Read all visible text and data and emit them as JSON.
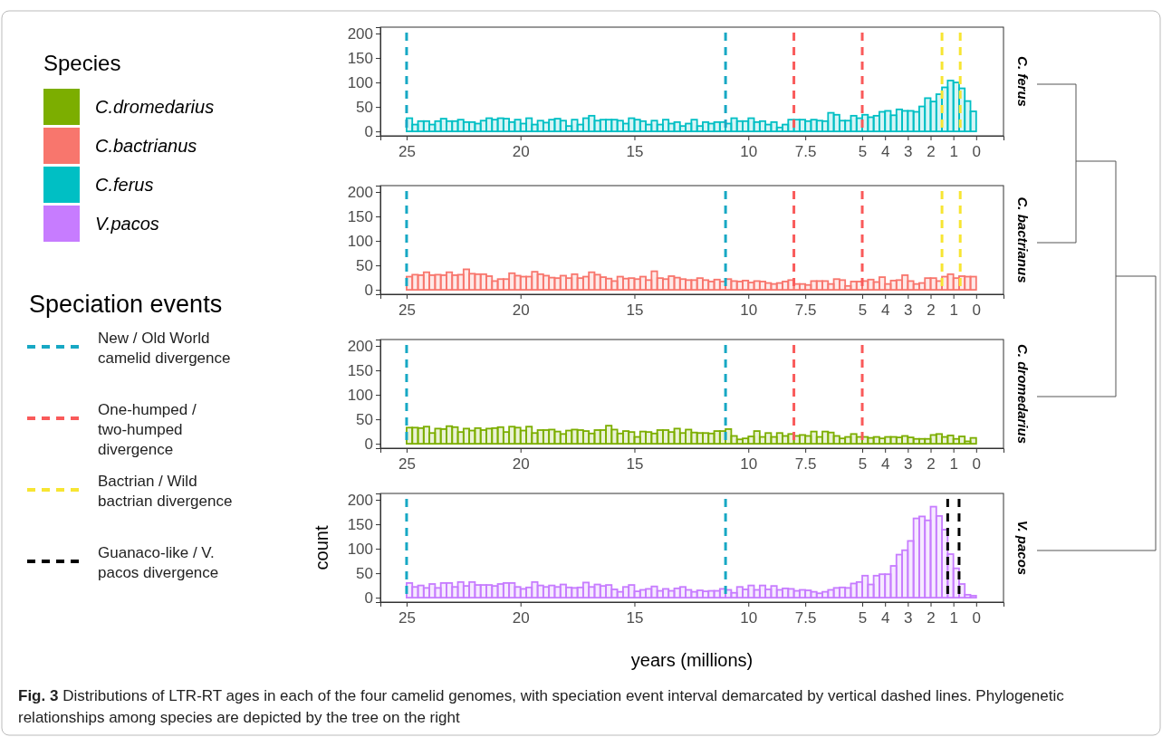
{
  "chart_data": [
    {
      "type": "histogram",
      "legend_title": "Species",
      "annotations": [
        "C. ferus",
        "Speciation events"
      ],
      "legend": "left",
      "bins": [
        25,
        24.75,
        24.5,
        24.25,
        24,
        23.75,
        23.5,
        23.25,
        23,
        22.75,
        22.5,
        22.25,
        22,
        21.75,
        21.5,
        21.25,
        21,
        20.75,
        20.5,
        20.25,
        20,
        19.75,
        19.5,
        19.25,
        19,
        18.75,
        18.5,
        18.25,
        18,
        17.75,
        17.5,
        17.25,
        17,
        16.75,
        16.5,
        16.25,
        16,
        15.75,
        15.5,
        15.25,
        15,
        14.75,
        14.5,
        14.25,
        14,
        13.75,
        13.5,
        13.25,
        13,
        12.75,
        12.5,
        12.25,
        12,
        11.75,
        11.5,
        11.25,
        11,
        10.75,
        10.5,
        10.25,
        10,
        9.75,
        9.5,
        9.25,
        9,
        8.75,
        8.5,
        8.25,
        8,
        7.75,
        7.5,
        7.25,
        7,
        6.75,
        6.5,
        6.25,
        6,
        5.75,
        5.5,
        5.25,
        5,
        4.75,
        4.5,
        4.25,
        4,
        3.75,
        3.5,
        3.25,
        3,
        2.75,
        2.5,
        2.25,
        2,
        1.75,
        1.5,
        1.25,
        1,
        0.75,
        0.5,
        0.25,
        0
      ],
      "series": [
        {
          "name": "C.ferus",
          "color": "#00bfc4",
          "values": [
            27,
            14,
            21,
            21,
            14,
            21,
            26,
            21,
            21,
            24,
            19,
            19,
            16,
            22,
            27,
            24,
            27,
            26,
            19,
            24,
            16,
            27,
            14,
            22,
            18,
            24,
            26,
            22,
            11,
            24,
            14,
            27,
            32,
            22,
            24,
            24,
            24,
            22,
            16,
            27,
            24,
            21,
            14,
            22,
            14,
            24,
            16,
            19,
            11,
            16,
            24,
            11,
            19,
            16,
            19,
            19,
            16,
            27,
            21,
            21,
            27,
            19,
            21,
            14,
            19,
            8,
            14,
            24,
            24,
            24,
            21,
            24,
            22,
            21,
            38,
            34,
            22,
            22,
            32,
            27,
            34,
            29,
            32,
            40,
            42,
            33,
            45,
            42,
            42,
            40,
            51,
            68,
            61,
            76,
            90,
            104,
            100,
            88,
            62,
            41
          ]
        }
      ],
      "xlim": [
        26.15,
        -1.2
      ],
      "xticks": [
        25,
        20,
        15,
        10,
        7.5,
        5,
        4,
        3,
        2,
        1,
        0
      ],
      "ylim": [
        -9,
        213
      ],
      "yticks": [
        0,
        50,
        100,
        150,
        200
      ],
      "ref_lines": [
        {
          "axis": "x",
          "value": 25,
          "label": "New / Old World camelid divergence",
          "color": "#17a8c4",
          "line_style": "dashed"
        },
        {
          "axis": "x",
          "value": 11,
          "color": "#17a8c4",
          "line_style": "dashed"
        },
        {
          "axis": "x",
          "value": 8,
          "label": "One-humped / two-humped divergence",
          "color": "#f95a5a",
          "line_style": "dashed"
        },
        {
          "axis": "x",
          "value": 5,
          "color": "#f95a5a",
          "line_style": "dashed"
        },
        {
          "axis": "x",
          "value": 1.5,
          "label": "Bactrian / Wild bactrian divergence",
          "color": "#f7e532",
          "line_style": "dashed"
        },
        {
          "axis": "x",
          "value": 0.7,
          "color": "#f7e532",
          "line_style": "dashed"
        }
      ]
    },
    {
      "type": "histogram",
      "annotations": [
        "C. bactrianus"
      ],
      "legend": "left",
      "bins": [
        25,
        24.75,
        24.5,
        24.25,
        24,
        23.75,
        23.5,
        23.25,
        23,
        22.75,
        22.5,
        22.25,
        22,
        21.75,
        21.5,
        21.25,
        21,
        20.75,
        20.5,
        20.25,
        20,
        19.75,
        19.5,
        19.25,
        19,
        18.75,
        18.5,
        18.25,
        18,
        17.75,
        17.5,
        17.25,
        17,
        16.75,
        16.5,
        16.25,
        16,
        15.75,
        15.5,
        15.25,
        15,
        14.75,
        14.5,
        14.25,
        14,
        13.75,
        13.5,
        13.25,
        13,
        12.75,
        12.5,
        12.25,
        12,
        11.75,
        11.5,
        11.25,
        11,
        10.75,
        10.5,
        10.25,
        10,
        9.75,
        9.5,
        9.25,
        9,
        8.75,
        8.5,
        8.25,
        8,
        7.75,
        7.5,
        7.25,
        7,
        6.75,
        6.5,
        6.25,
        6,
        5.75,
        5.5,
        5.25,
        5,
        4.75,
        4.5,
        4.25,
        4,
        3.75,
        3.5,
        3.25,
        3,
        2.75,
        2.5,
        2.25,
        2,
        1.75,
        1.5,
        1.25,
        1,
        0.75,
        0.5,
        0.25,
        0
      ],
      "series": [
        {
          "name": "C.bactrianus",
          "color": "#f8766d",
          "values": [
            27,
            31,
            30,
            36,
            30,
            31,
            30,
            36,
            30,
            31,
            42,
            33,
            32,
            32,
            28,
            18,
            22,
            22,
            34,
            29,
            27,
            27,
            37,
            32,
            29,
            25,
            24,
            29,
            24,
            32,
            24,
            27,
            36,
            31,
            26,
            23,
            18,
            27,
            23,
            24,
            22,
            27,
            20,
            38,
            24,
            22,
            28,
            25,
            22,
            20,
            20,
            24,
            20,
            17,
            21,
            17,
            22,
            18,
            17,
            19,
            15,
            18,
            17,
            14,
            12,
            14,
            17,
            20,
            12,
            12,
            10,
            18,
            18,
            18,
            12,
            22,
            20,
            8,
            17,
            17,
            18,
            21,
            16,
            26,
            12,
            19,
            20,
            30,
            18,
            12,
            14,
            24,
            24,
            18,
            27,
            32,
            24,
            28,
            27,
            27
          ]
        }
      ],
      "xlim": [
        26.15,
        -1.2
      ],
      "xticks": [
        25,
        20,
        15,
        10,
        7.5,
        5,
        4,
        3,
        2,
        1,
        0
      ],
      "ylim": [
        -9,
        213
      ],
      "yticks": [
        0,
        50,
        100,
        150,
        200
      ],
      "ref_lines": [
        {
          "axis": "x",
          "value": 25,
          "color": "#17a8c4",
          "line_style": "dashed"
        },
        {
          "axis": "x",
          "value": 11,
          "color": "#17a8c4",
          "line_style": "dashed"
        },
        {
          "axis": "x",
          "value": 8,
          "color": "#f95a5a",
          "line_style": "dashed"
        },
        {
          "axis": "x",
          "value": 5,
          "color": "#f95a5a",
          "line_style": "dashed"
        },
        {
          "axis": "x",
          "value": 1.5,
          "color": "#f7e532",
          "line_style": "dashed"
        },
        {
          "axis": "x",
          "value": 0.7,
          "color": "#f7e532",
          "line_style": "dashed"
        }
      ]
    },
    {
      "type": "histogram",
      "annotations": [
        "C. dromedarius"
      ],
      "legend": "left",
      "bins": [
        25,
        24.75,
        24.5,
        24.25,
        24,
        23.75,
        23.5,
        23.25,
        23,
        22.75,
        22.5,
        22.25,
        22,
        21.75,
        21.5,
        21.25,
        21,
        20.75,
        20.5,
        20.25,
        20,
        19.75,
        19.5,
        19.25,
        19,
        18.75,
        18.5,
        18.25,
        18,
        17.75,
        17.5,
        17.25,
        17,
        16.75,
        16.5,
        16.25,
        16,
        15.75,
        15.5,
        15.25,
        15,
        14.75,
        14.5,
        14.25,
        14,
        13.75,
        13.5,
        13.25,
        13,
        12.75,
        12.5,
        12.25,
        12,
        11.75,
        11.5,
        11.25,
        11,
        10.75,
        10.5,
        10.25,
        10,
        9.75,
        9.5,
        9.25,
        9,
        8.75,
        8.5,
        8.25,
        8,
        7.75,
        7.5,
        7.25,
        7,
        6.75,
        6.5,
        6.25,
        6,
        5.75,
        5.5,
        5.25,
        5,
        4.75,
        4.5,
        4.25,
        4,
        3.75,
        3.5,
        3.25,
        3,
        2.75,
        2.5,
        2.25,
        2,
        1.75,
        1.5,
        1.25,
        1,
        0.75,
        0.5,
        0.25,
        0
      ],
      "series": [
        {
          "name": "C.dromedarius",
          "color": "#7cae00",
          "values": [
            33,
            33,
            32,
            35,
            22,
            31,
            30,
            36,
            34,
            24,
            31,
            27,
            32,
            28,
            31,
            32,
            34,
            24,
            35,
            33,
            27,
            35,
            22,
            28,
            28,
            29,
            25,
            20,
            27,
            29,
            28,
            26,
            21,
            28,
            28,
            37,
            29,
            21,
            26,
            24,
            14,
            25,
            24,
            21,
            28,
            28,
            24,
            31,
            22,
            29,
            23,
            22,
            22,
            21,
            26,
            26,
            30,
            16,
            9,
            11,
            15,
            26,
            14,
            22,
            14,
            22,
            16,
            20,
            16,
            18,
            16,
            25,
            14,
            25,
            23,
            16,
            11,
            14,
            20,
            14,
            14,
            12,
            14,
            11,
            14,
            14,
            13,
            16,
            13,
            10,
            10,
            10,
            18,
            20,
            14,
            17,
            10,
            15,
            5,
            12
          ]
        }
      ],
      "xlim": [
        26.15,
        -1.2
      ],
      "xticks": [
        25,
        20,
        15,
        10,
        7.5,
        5,
        4,
        3,
        2,
        1,
        0
      ],
      "ylim": [
        -9,
        213
      ],
      "yticks": [
        0,
        50,
        100,
        150,
        200
      ],
      "ref_lines": [
        {
          "axis": "x",
          "value": 25,
          "color": "#17a8c4",
          "line_style": "dashed"
        },
        {
          "axis": "x",
          "value": 11,
          "color": "#17a8c4",
          "line_style": "dashed"
        },
        {
          "axis": "x",
          "value": 8,
          "color": "#f95a5a",
          "line_style": "dashed"
        },
        {
          "axis": "x",
          "value": 5,
          "color": "#f95a5a",
          "line_style": "dashed"
        }
      ]
    },
    {
      "type": "histogram",
      "xlabel": "years (millions)",
      "ylabel": "count",
      "legend": "left",
      "annotations": [
        "V. pacos",
        "Fig. 3 Distributions of LTR-RT ages in each of the four camelid genomes, with speciation event interval demarcated by vertical dashed lines. Phylogenetic relationships among species are depicted by the tree on the right"
      ],
      "bins": [
        25,
        24.75,
        24.5,
        24.25,
        24,
        23.75,
        23.5,
        23.25,
        23,
        22.75,
        22.5,
        22.25,
        22,
        21.75,
        21.5,
        21.25,
        21,
        20.75,
        20.5,
        20.25,
        20,
        19.75,
        19.5,
        19.25,
        19,
        18.75,
        18.5,
        18.25,
        18,
        17.75,
        17.5,
        17.25,
        17,
        16.75,
        16.5,
        16.25,
        16,
        15.75,
        15.5,
        15.25,
        15,
        14.75,
        14.5,
        14.25,
        14,
        13.75,
        13.5,
        13.25,
        13,
        12.75,
        12.5,
        12.25,
        12,
        11.75,
        11.5,
        11.25,
        11,
        10.75,
        10.5,
        10.25,
        10,
        9.75,
        9.5,
        9.25,
        9,
        8.75,
        8.5,
        8.25,
        8,
        7.75,
        7.5,
        7.25,
        7,
        6.75,
        6.5,
        6.25,
        6,
        5.75,
        5.5,
        5.25,
        5,
        4.75,
        4.5,
        4.25,
        4,
        3.75,
        3.5,
        3.25,
        3,
        2.75,
        2.5,
        2.25,
        2,
        1.75,
        1.5,
        1.25,
        1,
        0.75,
        0.5,
        0.25,
        0
      ],
      "series": [
        {
          "name": "V.pacos",
          "color": "#c77cff",
          "values": [
            30,
            22,
            25,
            20,
            28,
            20,
            30,
            30,
            22,
            32,
            24,
            32,
            26,
            26,
            26,
            24,
            28,
            30,
            30,
            22,
            18,
            21,
            32,
            25,
            22,
            25,
            22,
            27,
            21,
            20,
            21,
            31,
            22,
            27,
            24,
            26,
            17,
            12,
            22,
            26,
            13,
            16,
            18,
            23,
            14,
            18,
            14,
            19,
            22,
            16,
            12,
            15,
            13,
            14,
            14,
            18,
            16,
            10,
            22,
            17,
            25,
            16,
            25,
            17,
            24,
            16,
            19,
            18,
            14,
            16,
            15,
            12,
            9,
            12,
            16,
            20,
            21,
            20,
            29,
            32,
            45,
            27,
            45,
            48,
            48,
            65,
            88,
            97,
            116,
            162,
            166,
            158,
            186,
            167,
            139,
            89,
            60,
            28,
            6,
            4
          ]
        }
      ],
      "xlim": [
        26.15,
        -1.2
      ],
      "xticks": [
        25,
        20,
        15,
        10,
        7.5,
        5,
        4,
        3,
        2,
        1,
        0
      ],
      "ylim": [
        -9,
        213
      ],
      "yticks": [
        0,
        50,
        100,
        150,
        200
      ],
      "ref_lines": [
        {
          "axis": "x",
          "value": 25,
          "color": "#17a8c4",
          "line_style": "dashed"
        },
        {
          "axis": "x",
          "value": 11,
          "color": "#17a8c4",
          "line_style": "dashed"
        },
        {
          "axis": "x",
          "value": 1.25,
          "label": "Guanaco-like / V. pacos divergence",
          "color": "#000000",
          "line_style": "dashed"
        },
        {
          "axis": "x",
          "value": 0.75,
          "color": "#000000",
          "line_style": "dashed"
        }
      ]
    }
  ]
}
